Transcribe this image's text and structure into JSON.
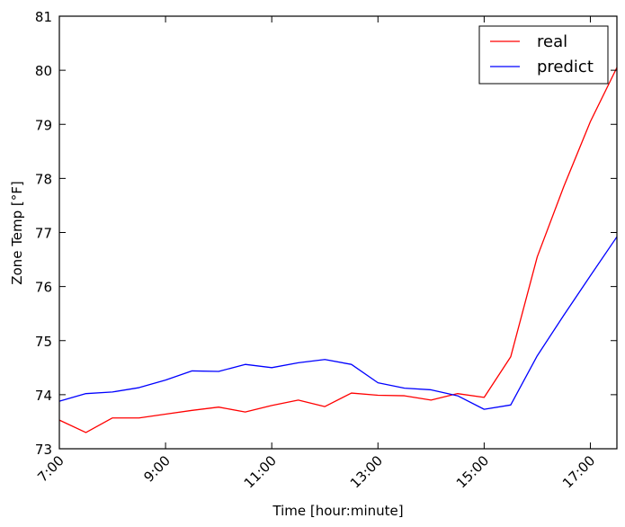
{
  "chart_data": {
    "type": "line",
    "title": "",
    "xlabel": "Time [hour:minute]",
    "ylabel": "Zone Temp [°F]",
    "x": [
      7.0,
      7.5,
      8.0,
      8.5,
      9.0,
      9.5,
      10.0,
      10.5,
      11.0,
      11.5,
      12.0,
      12.5,
      13.0,
      13.5,
      14.0,
      14.5,
      15.0,
      15.5,
      16.0,
      16.5,
      17.0,
      17.5
    ],
    "xlim": [
      7.0,
      17.5
    ],
    "ylim": [
      73,
      81
    ],
    "xticks": [
      {
        "value": 7,
        "label": "7:00"
      },
      {
        "value": 9,
        "label": "9:00"
      },
      {
        "value": 11,
        "label": "11:00"
      },
      {
        "value": 13,
        "label": "13:00"
      },
      {
        "value": 15,
        "label": "15:00"
      },
      {
        "value": 17,
        "label": "17:00"
      }
    ],
    "yticks": [
      {
        "value": 73,
        "label": "73"
      },
      {
        "value": 74,
        "label": "74"
      },
      {
        "value": 75,
        "label": "75"
      },
      {
        "value": 76,
        "label": "76"
      },
      {
        "value": 77,
        "label": "77"
      },
      {
        "value": 78,
        "label": "78"
      },
      {
        "value": 79,
        "label": "79"
      },
      {
        "value": 80,
        "label": "80"
      },
      {
        "value": 81,
        "label": "81"
      }
    ],
    "legend_position": "top-right",
    "series": [
      {
        "name": "real",
        "color": "#ff0000",
        "values": [
          73.53,
          73.3,
          73.57,
          73.57,
          73.64,
          73.71,
          73.77,
          73.68,
          73.8,
          73.9,
          73.78,
          74.03,
          73.99,
          73.98,
          73.9,
          74.02,
          73.95,
          74.7,
          76.55,
          77.85,
          79.05,
          80.05
        ]
      },
      {
        "name": "predict",
        "color": "#0000ff",
        "values": [
          73.88,
          74.02,
          74.05,
          74.13,
          74.27,
          74.44,
          74.43,
          74.56,
          74.5,
          74.59,
          74.65,
          74.56,
          74.22,
          74.12,
          74.09,
          73.98,
          73.73,
          73.81,
          74.72,
          75.47,
          76.2,
          76.92
        ]
      }
    ]
  }
}
